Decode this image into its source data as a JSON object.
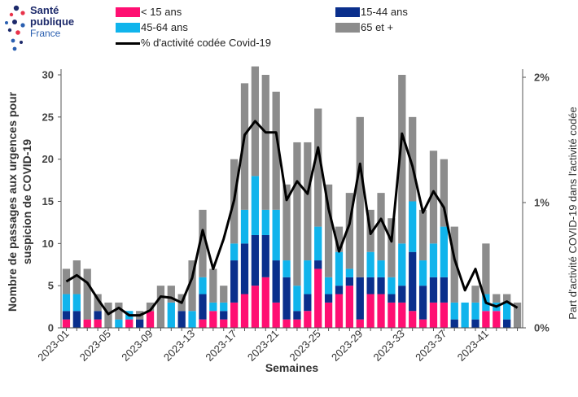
{
  "logo": {
    "line1": "Santé",
    "line2": "publique",
    "line3": "France"
  },
  "colors": {
    "lt15": "#ff0f72",
    "a15_44": "#0a2f8c",
    "a45_64": "#10b4ec",
    "a65": "#8c8c8c",
    "line": "#000000"
  },
  "legend": {
    "lt15": "< 15 ans",
    "a15_44": "15-44 ans",
    "a45_64": "45-64 ans",
    "a65": "65 et +",
    "line": "% d'activité codée Covid-19"
  },
  "chart_data": {
    "type": "bar",
    "stacked": true,
    "xlabel": "Semaines",
    "ylabel": "Nombre de passages aux urgences pour suspicion de COVID-19",
    "y2label": "Part d'activité COVID-19 dans l'activité codée",
    "ylim": [
      0,
      30
    ],
    "yticks": [
      0,
      5,
      10,
      15,
      20,
      25,
      30
    ],
    "y2lim": [
      0,
      2
    ],
    "y2ticks": [
      "0%",
      "1%",
      "2%"
    ],
    "xticks": [
      "2023-01",
      "2023-05",
      "2023-09",
      "2023-13",
      "2023-17",
      "2023-21",
      "2023-25",
      "2023-29",
      "2023-33",
      "2023-37",
      "2023-41"
    ],
    "categories": [
      "2023-01",
      "2023-02",
      "2023-03",
      "2023-04",
      "2023-05",
      "2023-06",
      "2023-07",
      "2023-08",
      "2023-09",
      "2023-10",
      "2023-11",
      "2023-12",
      "2023-13",
      "2023-14",
      "2023-15",
      "2023-16",
      "2023-17",
      "2023-18",
      "2023-19",
      "2023-20",
      "2023-21",
      "2023-22",
      "2023-23",
      "2023-24",
      "2023-25",
      "2023-26",
      "2023-27",
      "2023-28",
      "2023-29",
      "2023-30",
      "2023-31",
      "2023-32",
      "2023-33",
      "2023-34",
      "2023-35",
      "2023-36",
      "2023-37",
      "2023-38",
      "2023-39",
      "2023-40",
      "2023-41",
      "2023-42",
      "2023-43",
      "2023-44"
    ],
    "series": [
      {
        "name": "< 15 ans",
        "values": [
          1,
          0,
          1,
          1,
          0,
          0,
          1,
          0,
          2,
          0,
          0,
          0,
          0,
          1,
          2,
          1,
          3,
          4,
          5,
          6,
          3,
          1,
          1,
          2,
          7,
          3,
          4,
          5,
          1,
          4,
          4,
          3,
          3,
          2,
          1,
          3,
          3,
          0,
          0,
          0,
          2,
          2,
          0,
          0
        ]
      },
      {
        "name": "15-44 ans",
        "values": [
          1,
          2,
          0,
          1,
          0,
          0,
          0,
          1,
          0,
          0,
          0,
          2,
          0,
          3,
          0,
          1,
          5,
          6,
          6,
          5,
          5,
          5,
          1,
          2,
          1,
          1,
          1,
          1,
          5,
          2,
          2,
          1,
          2,
          7,
          4,
          3,
          3,
          1,
          0,
          1,
          0,
          0,
          1,
          0
        ]
      },
      {
        "name": "45-64 ans",
        "values": [
          2,
          2,
          0,
          0,
          0,
          1,
          1,
          0,
          0,
          0,
          3,
          0,
          2,
          2,
          1,
          1,
          2,
          4,
          7,
          3,
          6,
          2,
          3,
          4,
          4,
          2,
          4,
          1,
          0,
          3,
          2,
          2,
          5,
          6,
          3,
          4,
          6,
          2,
          3,
          2,
          2,
          1,
          2,
          0
        ]
      },
      {
        "name": "65 et +",
        "values": [
          3,
          4,
          6,
          2,
          3,
          2,
          0,
          1,
          1,
          5,
          2,
          2,
          6,
          8,
          4,
          2,
          10,
          15,
          13,
          16,
          14,
          9,
          17,
          14,
          14,
          11,
          3,
          9,
          19,
          5,
          8,
          7,
          20,
          10,
          6,
          11,
          8,
          9,
          0,
          2,
          6,
          1,
          1,
          3
        ]
      }
    ],
    "line_series": {
      "name": "% d'activité codée Covid-19",
      "axis": "right",
      "values": [
        0.37,
        0.42,
        0.36,
        0.23,
        0.11,
        0.16,
        0.1,
        0.1,
        0.14,
        0.25,
        0.24,
        0.2,
        0.4,
        0.78,
        0.47,
        0.71,
        1.02,
        1.54,
        1.65,
        1.56,
        1.56,
        1.02,
        1.17,
        1.07,
        1.44,
        0.95,
        0.61,
        0.83,
        1.31,
        0.75,
        0.87,
        0.69,
        1.55,
        1.29,
        0.92,
        1.09,
        0.96,
        0.55,
        0.3,
        0.47,
        0.2,
        0.17,
        0.21,
        0.16
      ]
    }
  }
}
